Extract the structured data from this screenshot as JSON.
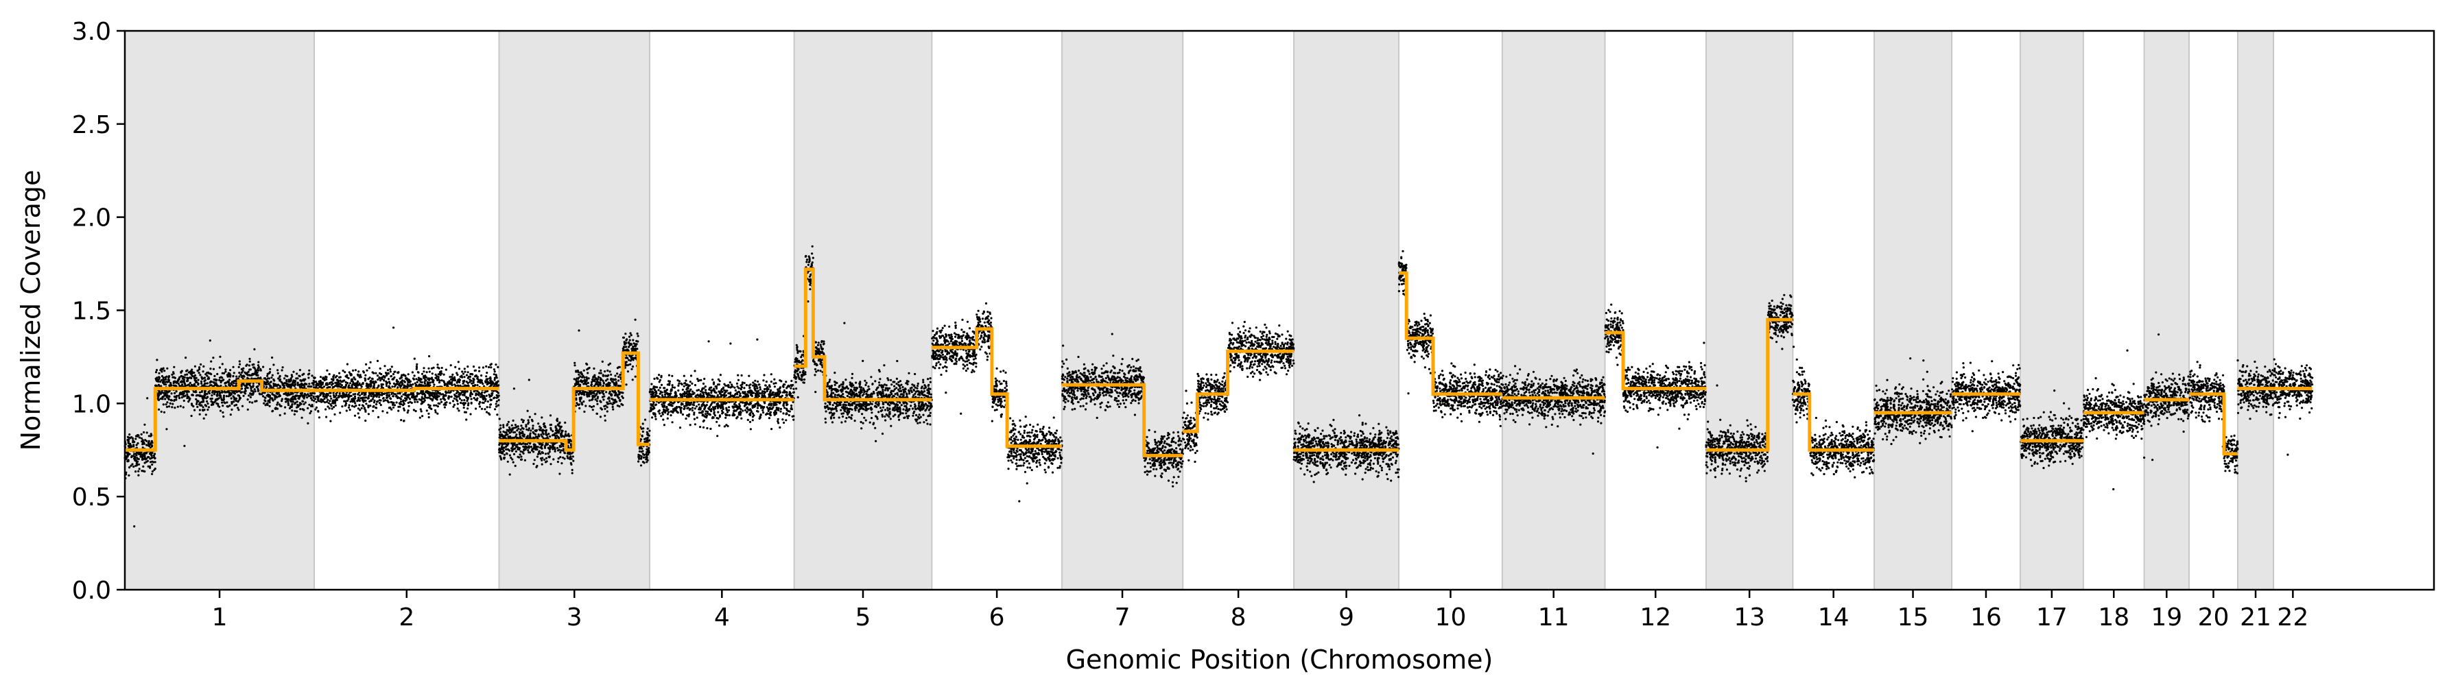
{
  "chart_data": {
    "type": "scatter",
    "title": "",
    "xlabel": "Genomic Position (Chromosome)",
    "ylabel": "Normalized Coverage",
    "ylim": [
      0.0,
      3.0
    ],
    "yticks": [
      "0.0",
      "0.5",
      "1.0",
      "1.5",
      "2.0",
      "2.5",
      "3.0"
    ],
    "grid": false,
    "legend": "none",
    "colors": {
      "points": "#000000",
      "segments": "#FFA500",
      "shade": "#e5e5e5",
      "shade_edge": "#c8c8c8"
    },
    "x_extent": [
      0,
      3036
    ],
    "chromosomes": [
      {
        "label": "1",
        "start": 0,
        "end": 249,
        "shaded": true,
        "segments": [
          [
            0,
            40,
            0.75
          ],
          [
            40,
            150,
            1.08
          ],
          [
            150,
            180,
            1.12
          ],
          [
            180,
            249,
            1.07
          ]
        ]
      },
      {
        "label": "2",
        "start": 249,
        "end": 492,
        "shaded": false,
        "segments": [
          [
            249,
            380,
            1.07
          ],
          [
            380,
            492,
            1.08
          ]
        ]
      },
      {
        "label": "3",
        "start": 492,
        "end": 690,
        "shaded": true,
        "segments": [
          [
            492,
            580,
            0.8
          ],
          [
            580,
            590,
            0.75
          ],
          [
            590,
            655,
            1.08
          ],
          [
            655,
            675,
            1.27
          ],
          [
            675,
            690,
            0.78
          ]
        ]
      },
      {
        "label": "4",
        "start": 690,
        "end": 880,
        "shaded": false,
        "segments": [
          [
            690,
            880,
            1.02
          ]
        ]
      },
      {
        "label": "5",
        "start": 880,
        "end": 1061,
        "shaded": true,
        "segments": [
          [
            880,
            895,
            1.2
          ],
          [
            895,
            905,
            1.72
          ],
          [
            905,
            920,
            1.25
          ],
          [
            920,
            1061,
            1.02
          ]
        ]
      },
      {
        "label": "6",
        "start": 1061,
        "end": 1232,
        "shaded": false,
        "segments": [
          [
            1061,
            1120,
            1.3
          ],
          [
            1120,
            1140,
            1.4
          ],
          [
            1140,
            1160,
            1.05
          ],
          [
            1160,
            1232,
            0.77
          ]
        ]
      },
      {
        "label": "7",
        "start": 1232,
        "end": 1391,
        "shaded": true,
        "segments": [
          [
            1232,
            1340,
            1.1
          ],
          [
            1340,
            1391,
            0.72
          ]
        ]
      },
      {
        "label": "8",
        "start": 1391,
        "end": 1537,
        "shaded": false,
        "segments": [
          [
            1391,
            1410,
            0.85
          ],
          [
            1410,
            1450,
            1.05
          ],
          [
            1450,
            1537,
            1.28
          ]
        ]
      },
      {
        "label": "9",
        "start": 1537,
        "end": 1675,
        "shaded": true,
        "segments": [
          [
            1537,
            1675,
            0.75
          ]
        ]
      },
      {
        "label": "10",
        "start": 1675,
        "end": 1811,
        "shaded": false,
        "segments": [
          [
            1675,
            1685,
            1.7
          ],
          [
            1685,
            1720,
            1.35
          ],
          [
            1720,
            1811,
            1.05
          ]
        ]
      },
      {
        "label": "11",
        "start": 1811,
        "end": 1946,
        "shaded": true,
        "segments": [
          [
            1811,
            1946,
            1.03
          ]
        ]
      },
      {
        "label": "12",
        "start": 1946,
        "end": 2079,
        "shaded": false,
        "segments": [
          [
            1946,
            1970,
            1.38
          ],
          [
            1970,
            2079,
            1.08
          ]
        ]
      },
      {
        "label": "13",
        "start": 2079,
        "end": 2193,
        "shaded": true,
        "segments": [
          [
            2079,
            2160,
            0.75
          ],
          [
            2160,
            2193,
            1.45
          ]
        ]
      },
      {
        "label": "14",
        "start": 2193,
        "end": 2300,
        "shaded": false,
        "segments": [
          [
            2193,
            2215,
            1.05
          ],
          [
            2215,
            2300,
            0.75
          ]
        ]
      },
      {
        "label": "15",
        "start": 2300,
        "end": 2402,
        "shaded": true,
        "segments": [
          [
            2300,
            2402,
            0.95
          ]
        ]
      },
      {
        "label": "16",
        "start": 2402,
        "end": 2492,
        "shaded": false,
        "segments": [
          [
            2402,
            2492,
            1.05
          ]
        ]
      },
      {
        "label": "17",
        "start": 2492,
        "end": 2575,
        "shaded": true,
        "segments": [
          [
            2492,
            2575,
            0.8
          ]
        ]
      },
      {
        "label": "18",
        "start": 2575,
        "end": 2655,
        "shaded": false,
        "segments": [
          [
            2575,
            2655,
            0.95
          ]
        ]
      },
      {
        "label": "19",
        "start": 2655,
        "end": 2714,
        "shaded": true,
        "segments": [
          [
            2655,
            2714,
            1.02
          ]
        ]
      },
      {
        "label": "20",
        "start": 2714,
        "end": 2778,
        "shaded": false,
        "segments": [
          [
            2714,
            2760,
            1.05
          ],
          [
            2760,
            2778,
            0.73
          ]
        ]
      },
      {
        "label": "21",
        "start": 2778,
        "end": 2825,
        "shaded": true,
        "segments": [
          [
            2778,
            2825,
            1.08
          ]
        ]
      },
      {
        "label": "22",
        "start": 2825,
        "end": 2876,
        "shaded": false,
        "segments": [
          [
            2825,
            2876,
            1.08
          ]
        ]
      }
    ]
  }
}
